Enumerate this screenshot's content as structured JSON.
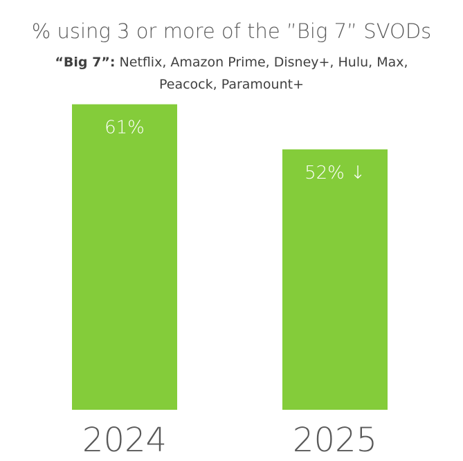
{
  "chart_data": {
    "type": "bar",
    "title": "% using 3 or more of the ”Big 7” SVODs",
    "subtitle_lead": "“Big 7”:",
    "subtitle_line1_rest": " Netflix, Amazon Prime, Disney+, Hulu, Max,",
    "subtitle_line2": "Peacock, Paramount+",
    "categories": [
      "2024",
      "2025"
    ],
    "values": [
      61,
      52
    ],
    "data_labels": [
      "61%",
      "52% ↓"
    ],
    "ylim": [
      0,
      68
    ],
    "xlabel": "",
    "ylabel": "",
    "grid": false,
    "bar_color": "#84cc3a"
  }
}
